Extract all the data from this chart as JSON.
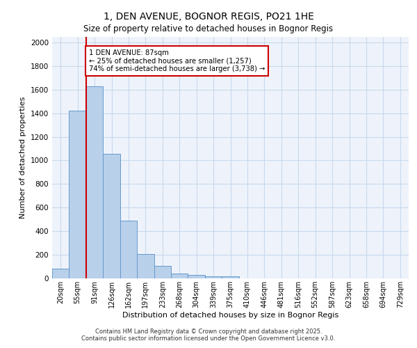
{
  "title_line1": "1, DEN AVENUE, BOGNOR REGIS, PO21 1HE",
  "title_line2": "Size of property relative to detached houses in Bognor Regis",
  "xlabel": "Distribution of detached houses by size in Bognor Regis",
  "ylabel": "Number of detached properties",
  "categories": [
    "20sqm",
    "55sqm",
    "91sqm",
    "126sqm",
    "162sqm",
    "197sqm",
    "233sqm",
    "268sqm",
    "304sqm",
    "339sqm",
    "375sqm",
    "410sqm",
    "446sqm",
    "481sqm",
    "516sqm",
    "552sqm",
    "587sqm",
    "623sqm",
    "658sqm",
    "694sqm",
    "729sqm"
  ],
  "bar_values": [
    80,
    1420,
    1630,
    1055,
    490,
    205,
    105,
    40,
    30,
    20,
    20,
    0,
    0,
    0,
    0,
    0,
    0,
    0,
    0,
    0,
    0
  ],
  "bar_color": "#b8d0ea",
  "bar_edge_color": "#6699cc",
  "grid_color": "#c8d8ec",
  "bg_color": "#eef3fb",
  "red_line_x": 2,
  "red_line_color": "#cc0000",
  "annotation_text": "1 DEN AVENUE: 87sqm\n← 25% of detached houses are smaller (1,257)\n74% of semi-detached houses are larger (3,738) →",
  "annotation_box_color": "#ffffff",
  "annotation_box_edge": "#cc0000",
  "ylim": [
    0,
    2050
  ],
  "yticks": [
    0,
    200,
    400,
    600,
    800,
    1000,
    1200,
    1400,
    1600,
    1800,
    2000
  ],
  "footer_line1": "Contains HM Land Registry data © Crown copyright and database right 2025.",
  "footer_line2": "Contains public sector information licensed under the Open Government Licence v3.0."
}
